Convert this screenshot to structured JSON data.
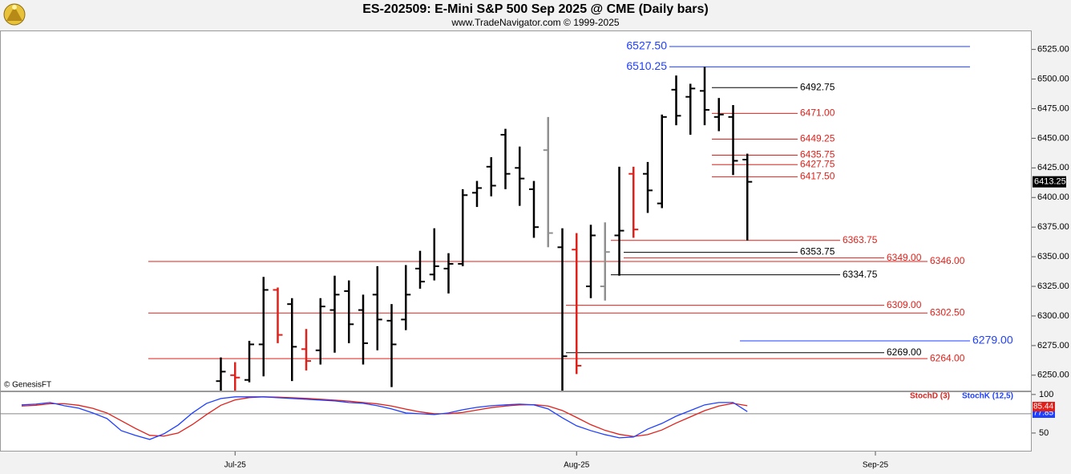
{
  "chart_data": {
    "type": "ohlc",
    "title": "ES-202509:  E-Mini S&P 500 Sep 2025 @ CME  (Daily bars)",
    "subtitle": "www.TradeNavigator.com © 1999-2025",
    "watermark": "© GenesisFT",
    "categories": [
      null,
      null,
      null,
      null,
      null,
      null,
      null,
      null,
      null,
      null,
      null,
      null,
      null,
      null,
      null,
      "Jul-25",
      null,
      null,
      null,
      null,
      null,
      null,
      null,
      null,
      null,
      null,
      null,
      null,
      null,
      null,
      null,
      null,
      null,
      null,
      null,
      null,
      null,
      null,
      null,
      "Aug-25",
      null,
      null,
      null,
      null,
      null,
      null,
      null,
      null,
      null,
      null,
      null,
      null,
      null,
      null,
      null,
      null,
      null,
      null,
      null,
      null,
      "Sep-25"
    ],
    "open": [
      null,
      null,
      null,
      null,
      null,
      null,
      null,
      null,
      null,
      null,
      null,
      null,
      null,
      null,
      6245,
      6250,
      6246,
      6276,
      6322,
      6310,
      6272,
      6271,
      6305,
      6321,
      6305,
      6318,
      6296,
      6297,
      6340,
      6335,
      6340,
      6344,
      6404,
      6426,
      6453,
      6425,
      6407,
      6440,
      6358,
      6356,
      6325,
      6325,
      6368,
      6420,
      6420,
      6395,
      6491,
      6485,
      6490,
      6468,
      6468,
      6432,
      null,
      null,
      null,
      null,
      null,
      null,
      null,
      null,
      null
    ],
    "high": [
      null,
      null,
      null,
      null,
      null,
      null,
      null,
      null,
      null,
      null,
      null,
      null,
      null,
      null,
      6265,
      6261,
      6279,
      6333,
      6324,
      6315,
      6289,
      6315,
      6334,
      6330,
      6318,
      6342,
      6310,
      6343,
      6355,
      6374,
      6353,
      6407,
      6414,
      6434,
      6458,
      6443,
      6414,
      6468,
      6374,
      6370,
      6377,
      6379,
      6426,
      6426,
      6430,
      6470,
      6503,
      6496,
      6510.25,
      6484,
      6478,
      6437,
      null,
      null,
      null,
      null,
      null,
      null,
      null,
      null,
      null
    ],
    "low": [
      null,
      null,
      null,
      null,
      null,
      null,
      null,
      null,
      null,
      null,
      null,
      null,
      null,
      null,
      6232,
      6232,
      6244,
      6249,
      6277,
      6245,
      6254,
      6259,
      6269,
      6277,
      6259,
      6271,
      6240,
      6288,
      6323,
      6330,
      6319,
      6342,
      6392,
      6401,
      6407,
      6393,
      6366,
      6358,
      6232,
      6251,
      6315,
      6313,
      6334,
      6366,
      6387,
      6391,
      6461,
      6453,
      6461,
      6456,
      6419,
      6363.75,
      null,
      null,
      null,
      null,
      null,
      null,
      null,
      null,
      null
    ],
    "close": [
      null,
      null,
      null,
      null,
      null,
      null,
      null,
      null,
      null,
      null,
      null,
      null,
      null,
      null,
      6253,
      6248,
      6276,
      6322,
      6284,
      6274,
      6262,
      6308,
      6318,
      6293,
      6277,
      6297,
      6276,
      6318,
      6329,
      6342,
      6344,
      6402,
      6408,
      6410,
      6420,
      6416,
      6375,
      6370,
      6266,
      6258,
      6368,
      6354,
      6372,
      6373,
      6406,
      6468,
      6469,
      6492,
      6474,
      6470,
      6431,
      6413.25,
      null,
      null,
      null,
      null,
      null,
      null,
      null,
      null,
      null
    ],
    "bar_colors": [
      null,
      null,
      null,
      null,
      null,
      null,
      null,
      null,
      null,
      null,
      null,
      null,
      null,
      null,
      "#000000",
      "#e0201a",
      "#000000",
      "#000000",
      "#e0201a",
      "#000000",
      "#e0201a",
      "#000000",
      "#000000",
      "#000000",
      "#000000",
      "#000000",
      "#000000",
      "#000000",
      "#000000",
      "#000000",
      "#000000",
      "#000000",
      "#000000",
      "#000000",
      "#000000",
      "#000000",
      "#000000",
      "#909090",
      "#000000",
      "#e0201a",
      "#000000",
      "#909090",
      "#000000",
      "#e0201a",
      "#000000",
      "#000000",
      "#000000",
      "#000000",
      "#000000",
      "#000000",
      "#000000",
      "#000000",
      null,
      null,
      null,
      null,
      null,
      null,
      null,
      null,
      null
    ],
    "ylim": [
      6237,
      6541
    ],
    "yticks": [
      {
        "value": 6250,
        "label": "6250.00"
      },
      {
        "value": 6275,
        "label": "6275.00"
      },
      {
        "value": 6300,
        "label": "6300.00"
      },
      {
        "value": 6325,
        "label": "6325.00"
      },
      {
        "value": 6350,
        "label": "6350.00"
      },
      {
        "value": 6375,
        "label": "6375.00"
      },
      {
        "value": 6400,
        "label": "6400.00"
      },
      {
        "value": 6425,
        "label": "6425.00"
      },
      {
        "value": 6450,
        "label": "6450.00"
      },
      {
        "value": 6475,
        "label": "6475.00"
      },
      {
        "value": 6500,
        "label": "6500.00"
      },
      {
        "value": 6525,
        "label": "6525.00"
      }
    ],
    "levels": [
      {
        "value": 6527.5,
        "label": "6527.50",
        "color": "#1f3fff"
      },
      {
        "value": 6510.25,
        "label": "6510.25",
        "color": "#1f3fff"
      },
      {
        "value": 6492.75,
        "label": "6492.75",
        "color": "#000000"
      },
      {
        "value": 6471,
        "label": "6471.00",
        "color": "#e0201a"
      },
      {
        "value": 6449.25,
        "label": "6449.25",
        "color": "#e0201a"
      },
      {
        "value": 6435.75,
        "label": "6435.75",
        "color": "#e0201a"
      },
      {
        "value": 6427.75,
        "label": "6427.75",
        "color": "#e0201a"
      },
      {
        "value": 6417.5,
        "label": "6417.50",
        "color": "#e0201a"
      },
      {
        "value": 6363.75,
        "label": "6363.75",
        "color": "#e0201a"
      },
      {
        "value": 6353.75,
        "label": "6353.75",
        "color": "#000000"
      },
      {
        "value": 6349,
        "label": "6349.00",
        "color": "#e0201a"
      },
      {
        "value": 6346,
        "label": "6346.00",
        "color": "#e0201a"
      },
      {
        "value": 6334.75,
        "label": "6334.75",
        "color": "#000000"
      },
      {
        "value": 6309,
        "label": "6309.00",
        "color": "#e0201a"
      },
      {
        "value": 6302.5,
        "label": "6302.50",
        "color": "#e0201a"
      },
      {
        "value": 6279,
        "label": "6279.00",
        "color": "#1f3fff"
      },
      {
        "value": 6269,
        "label": "6269.00",
        "color": "#000000"
      },
      {
        "value": 6264,
        "label": "6264.00",
        "color": "#e0201a"
      }
    ],
    "indicator": {
      "type": "line",
      "ylim": [
        26,
        104
      ],
      "yticks": [
        100,
        50
      ],
      "reference_line": 75,
      "series": [
        {
          "name": "StochD (3)",
          "color": "#e0201a",
          "values": [
            85,
            86,
            88,
            88,
            86,
            82,
            76,
            66,
            56,
            47,
            46,
            50,
            61,
            74,
            86,
            93,
            96,
            96.9,
            96.5,
            95.8,
            95,
            93.8,
            92.7,
            91.3,
            89.6,
            87.8,
            85,
            81,
            77.4,
            75,
            75,
            76.7,
            79.8,
            83,
            85,
            86.5,
            86.8,
            85,
            79.2,
            70.2,
            60.8,
            53.5,
            48.3,
            45.5,
            48,
            54,
            63,
            71,
            79,
            85,
            88.5,
            85.44,
            null,
            null,
            null,
            null,
            null,
            null,
            null,
            null,
            null
          ]
        },
        {
          "name": "StochK (12,5)",
          "color": "#1f3fff",
          "values": [
            86.5,
            87.5,
            89.6,
            85.4,
            82.3,
            76,
            68.8,
            53.1,
            46.9,
            41.7,
            49,
            60.4,
            76,
            88.5,
            94.8,
            96.9,
            96.9,
            96.9,
            95.8,
            94.8,
            93.8,
            92.7,
            91.7,
            89.6,
            88.5,
            85.4,
            81.3,
            76,
            75,
            74,
            76,
            80.2,
            83.3,
            85.4,
            86.5,
            87.5,
            86.5,
            81.3,
            69.8,
            59.4,
            53.1,
            47.9,
            43.8,
            44.8,
            55.2,
            62.5,
            71.9,
            79.2,
            86.5,
            89.6,
            89.6,
            77.85,
            null,
            null,
            null,
            null,
            null,
            null,
            null,
            null,
            null
          ]
        }
      ]
    }
  }
}
